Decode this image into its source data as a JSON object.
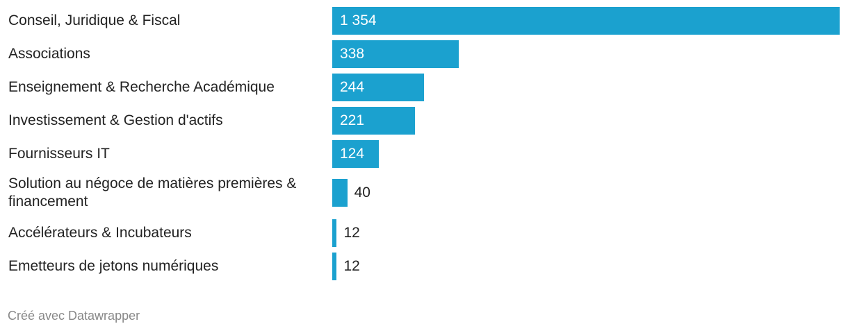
{
  "chart_data": {
    "type": "bar",
    "orientation": "horizontal",
    "categories": [
      "Conseil, Juridique & Fiscal",
      "Associations",
      "Enseignement & Recherche Académique",
      "Investissement & Gestion d'actifs",
      "Fournisseurs IT",
      "Solution au négoce de matières premières & financement",
      "Accélérateurs & Incubateurs",
      "Emetteurs de jetons numériques"
    ],
    "values": [
      1354,
      338,
      244,
      221,
      124,
      40,
      12,
      12
    ],
    "value_labels": [
      "1 354",
      "338",
      "244",
      "221",
      "124",
      "40",
      "12",
      "12"
    ],
    "color": "#1ba1cf",
    "footer": "Créé avec Datawrapper"
  }
}
